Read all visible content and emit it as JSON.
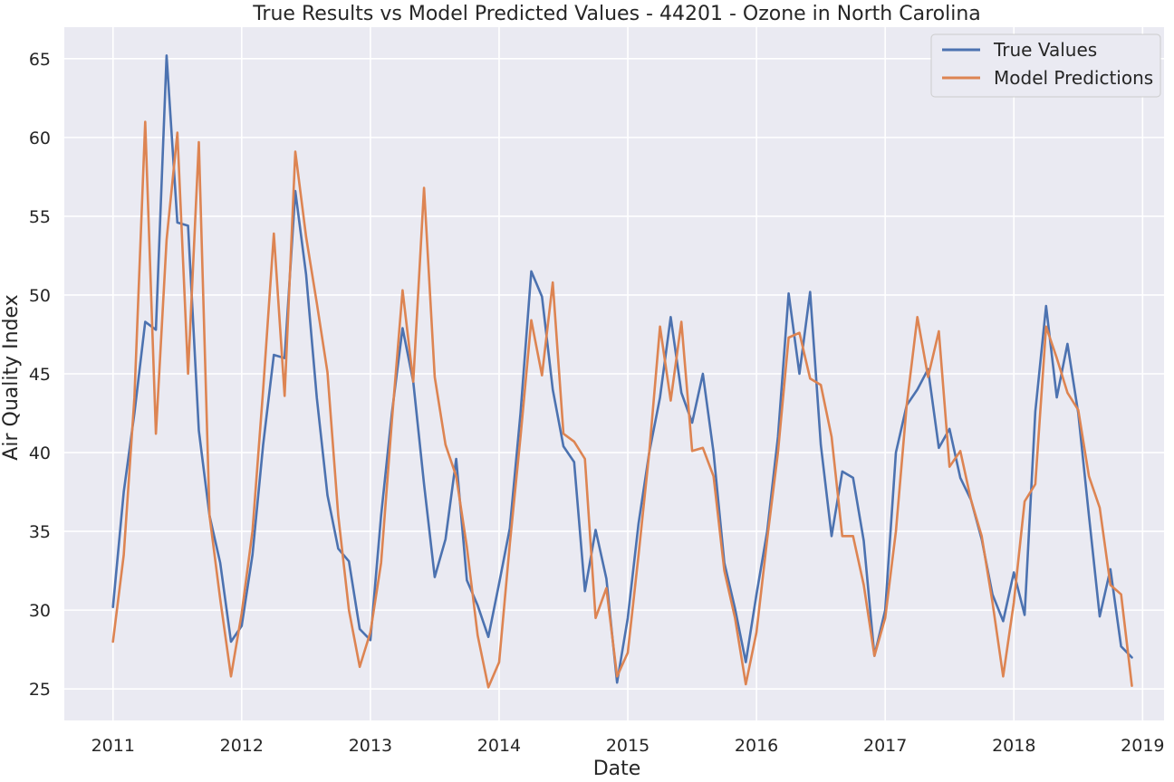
{
  "chart_data": {
    "type": "line",
    "title": "True Results vs Model Predicted Values - 44201 - Ozone in North Carolina",
    "xlabel": "Date",
    "ylabel": "Air Quality Index",
    "x_ticks": [
      "2011",
      "2012",
      "2013",
      "2014",
      "2015",
      "2016",
      "2017",
      "2018",
      "2019"
    ],
    "y_ticks": [
      "25",
      "30",
      "35",
      "40",
      "45",
      "50",
      "55",
      "60",
      "65"
    ],
    "xlim": [
      "2010-08-15",
      "2019-03-01"
    ],
    "ylim": [
      23,
      67
    ],
    "grid": true,
    "legend_position": "top-right",
    "x_dates": [
      "2011-01",
      "2011-02",
      "2011-03",
      "2011-04",
      "2011-05",
      "2011-06",
      "2011-07",
      "2011-08",
      "2011-09",
      "2011-10",
      "2011-11",
      "2011-12",
      "2012-01",
      "2012-02",
      "2012-03",
      "2012-04",
      "2012-05",
      "2012-06",
      "2012-07",
      "2012-08",
      "2012-09",
      "2012-10",
      "2012-11",
      "2012-12",
      "2013-01",
      "2013-02",
      "2013-03",
      "2013-04",
      "2013-05",
      "2013-06",
      "2013-07",
      "2013-08",
      "2013-09",
      "2013-10",
      "2013-11",
      "2013-12",
      "2014-01",
      "2014-02",
      "2014-03",
      "2014-04",
      "2014-05",
      "2014-06",
      "2014-07",
      "2014-08",
      "2014-09",
      "2014-10",
      "2014-11",
      "2014-12",
      "2015-01",
      "2015-02",
      "2015-03",
      "2015-04",
      "2015-05",
      "2015-06",
      "2015-07",
      "2015-08",
      "2015-09",
      "2015-10",
      "2015-11",
      "2015-12",
      "2016-01",
      "2016-02",
      "2016-03",
      "2016-04",
      "2016-05",
      "2016-06",
      "2016-07",
      "2016-08",
      "2016-09",
      "2016-10",
      "2016-11",
      "2016-12",
      "2017-01",
      "2017-02",
      "2017-03",
      "2017-04",
      "2017-05",
      "2017-06",
      "2017-07",
      "2017-08",
      "2017-09",
      "2017-10",
      "2017-11",
      "2017-12",
      "2018-01",
      "2018-02",
      "2018-03",
      "2018-04",
      "2018-05",
      "2018-06",
      "2018-07",
      "2018-08",
      "2018-09",
      "2018-10",
      "2018-11",
      "2018-12"
    ],
    "series": [
      {
        "name": "True Values",
        "color": "#4C72B0",
        "values": [
          30.2,
          37.5,
          42.5,
          48.3,
          47.8,
          65.2,
          54.6,
          54.4,
          41.4,
          36.0,
          33.0,
          28.0,
          29.0,
          33.5,
          40.5,
          46.2,
          46.0,
          56.6,
          51.3,
          43.5,
          37.3,
          33.9,
          33.1,
          28.8,
          28.1,
          36.0,
          42.5,
          47.9,
          44.5,
          38.0,
          32.1,
          34.5,
          39.6,
          31.9,
          30.3,
          28.3,
          31.7,
          35.2,
          42.5,
          51.5,
          49.9,
          44.0,
          40.4,
          39.4,
          31.2,
          35.1,
          32.0,
          25.4,
          29.5,
          35.5,
          40.0,
          43.5,
          48.6,
          43.8,
          41.9,
          45.0,
          40.0,
          33.0,
          30.1,
          26.7,
          31.0,
          35.0,
          41.0,
          50.1,
          45.0,
          50.2,
          40.5,
          34.7,
          38.8,
          38.4,
          34.4,
          27.1,
          30.0,
          40.0,
          43.0,
          44.0,
          45.3,
          40.3,
          41.5,
          38.4,
          37.0,
          34.5,
          31.0,
          29.3,
          32.4,
          29.7,
          42.6,
          49.3,
          43.5,
          46.9,
          42.5,
          36.0,
          29.6,
          32.6,
          27.7,
          27.0
        ]
      },
      {
        "name": "Model Predictions",
        "color": "#DD8452",
        "values": [
          28.0,
          33.5,
          43.5,
          61.0,
          41.2,
          53.5,
          60.3,
          45.0,
          59.7,
          36.0,
          30.7,
          25.8,
          29.8,
          35.0,
          44.0,
          53.9,
          43.6,
          59.1,
          53.7,
          49.5,
          45.1,
          36.0,
          30.0,
          26.4,
          28.6,
          33.0,
          42.0,
          50.3,
          44.5,
          56.8,
          44.8,
          40.5,
          38.5,
          34.0,
          28.4,
          25.1,
          26.7,
          34.2,
          41.0,
          48.4,
          44.9,
          50.8,
          41.2,
          40.7,
          39.6,
          29.5,
          31.4,
          25.8,
          27.3,
          33.5,
          40.0,
          48.0,
          43.3,
          48.3,
          40.1,
          40.3,
          38.5,
          32.5,
          29.5,
          25.3,
          28.6,
          34.5,
          40.0,
          47.3,
          47.6,
          44.7,
          44.3,
          41.0,
          34.7,
          34.7,
          31.6,
          27.1,
          29.5,
          35.0,
          43.0,
          48.6,
          44.8,
          47.7,
          39.1,
          40.1,
          37.0,
          34.7,
          30.5,
          25.8,
          30.5,
          36.9,
          38.0,
          48.0,
          46.0,
          43.8,
          42.7,
          38.5,
          36.5,
          31.6,
          31.0,
          25.2
        ]
      }
    ]
  }
}
